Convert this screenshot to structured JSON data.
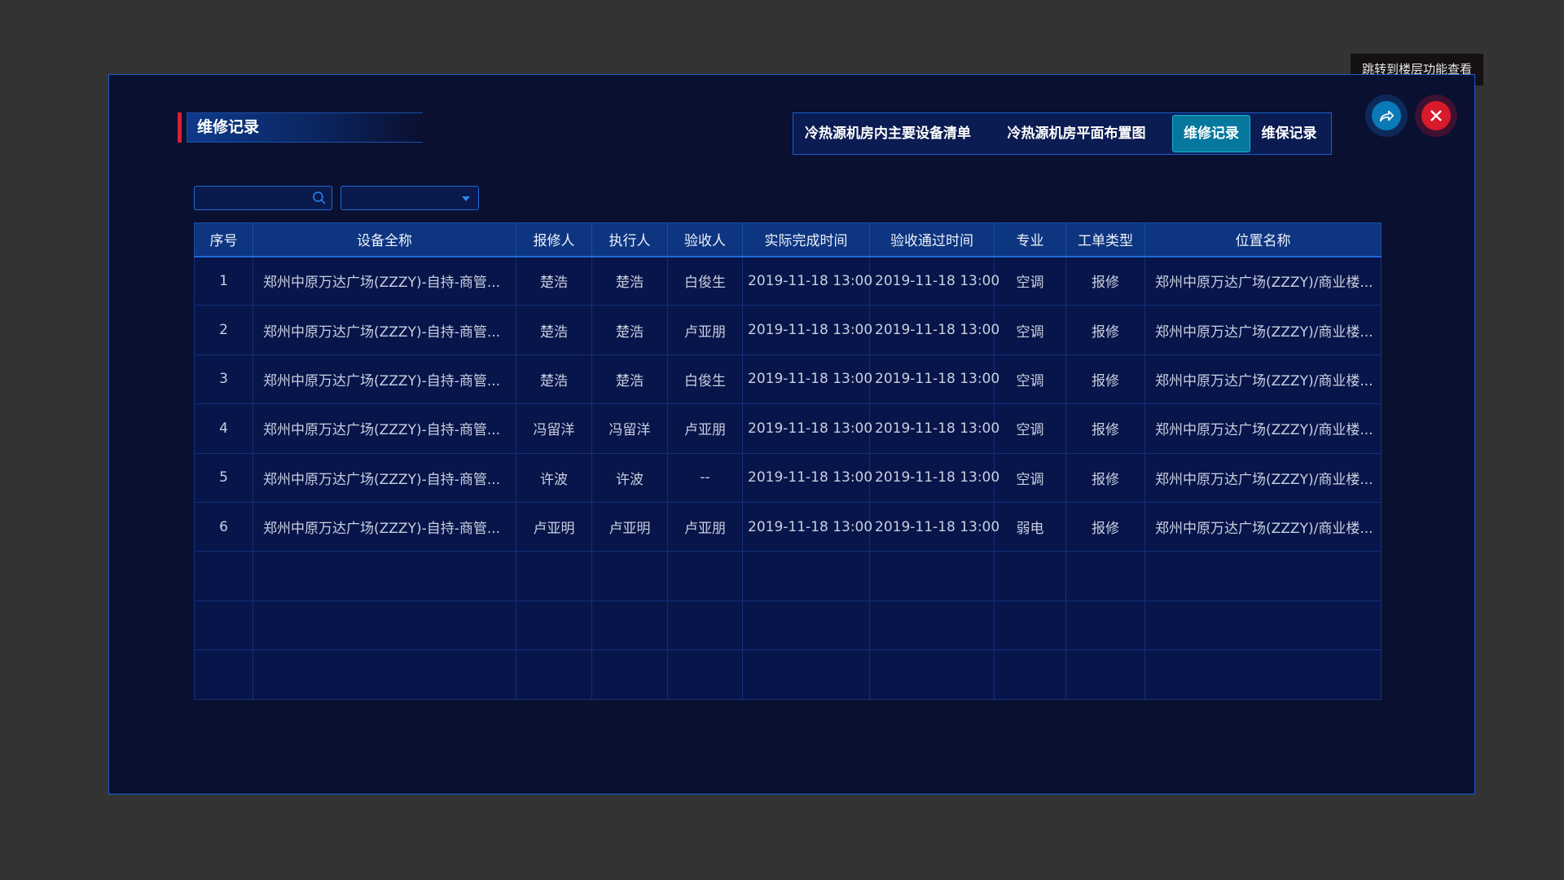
{
  "tooltip": "跳转到楼层功能查看",
  "title": "维修记录",
  "tabs": [
    {
      "label": "冷热源机房内主要设备清单",
      "active": false
    },
    {
      "label": "冷热源机房平面布置图",
      "active": false
    },
    {
      "label": "维修记录",
      "active": true
    },
    {
      "label": "维保记录",
      "active": false
    }
  ],
  "search": {
    "value": "",
    "placeholder": ""
  },
  "select": {
    "value": ""
  },
  "colors": {
    "accent": "#06789e",
    "close": "#d81a2a",
    "share": "#0a7ab8",
    "title_marker": "#d8203a"
  },
  "table": {
    "headers": [
      "序号",
      "设备全称",
      "报修人",
      "执行人",
      "验收人",
      "实际完成时间",
      "验收通过时间",
      "专业",
      "工单类型",
      "位置名称"
    ],
    "rows": [
      [
        "1",
        "郑州中原万达广场(ZZZY)-自持-商管...",
        "楚浩",
        "楚浩",
        "白俊生",
        "2019-11-18 13:00",
        "2019-11-18 13:00",
        "空调",
        "报修",
        "郑州中原万达广场(ZZZY)/商业楼..."
      ],
      [
        "2",
        "郑州中原万达广场(ZZZY)-自持-商管...",
        "楚浩",
        "楚浩",
        "卢亚朋",
        "2019-11-18 13:00",
        "2019-11-18 13:00",
        "空调",
        "报修",
        "郑州中原万达广场(ZZZY)/商业楼..."
      ],
      [
        "3",
        "郑州中原万达广场(ZZZY)-自持-商管...",
        "楚浩",
        "楚浩",
        "白俊生",
        "2019-11-18 13:00",
        "2019-11-18 13:00",
        "空调",
        "报修",
        "郑州中原万达广场(ZZZY)/商业楼..."
      ],
      [
        "4",
        "郑州中原万达广场(ZZZY)-自持-商管...",
        "冯留洋",
        "冯留洋",
        "卢亚朋",
        "2019-11-18 13:00",
        "2019-11-18 13:00",
        "空调",
        "报修",
        "郑州中原万达广场(ZZZY)/商业楼..."
      ],
      [
        "5",
        "郑州中原万达广场(ZZZY)-自持-商管...",
        "许波",
        "许波",
        "--",
        "2019-11-18 13:00",
        "2019-11-18 13:00",
        "空调",
        "报修",
        "郑州中原万达广场(ZZZY)/商业楼..."
      ],
      [
        "6",
        "郑州中原万达广场(ZZZY)-自持-商管...",
        "卢亚明",
        "卢亚明",
        "卢亚朋",
        "2019-11-18 13:00",
        "2019-11-18 13:00",
        "弱电",
        "报修",
        "郑州中原万达广场(ZZZY)/商业楼..."
      ]
    ]
  }
}
